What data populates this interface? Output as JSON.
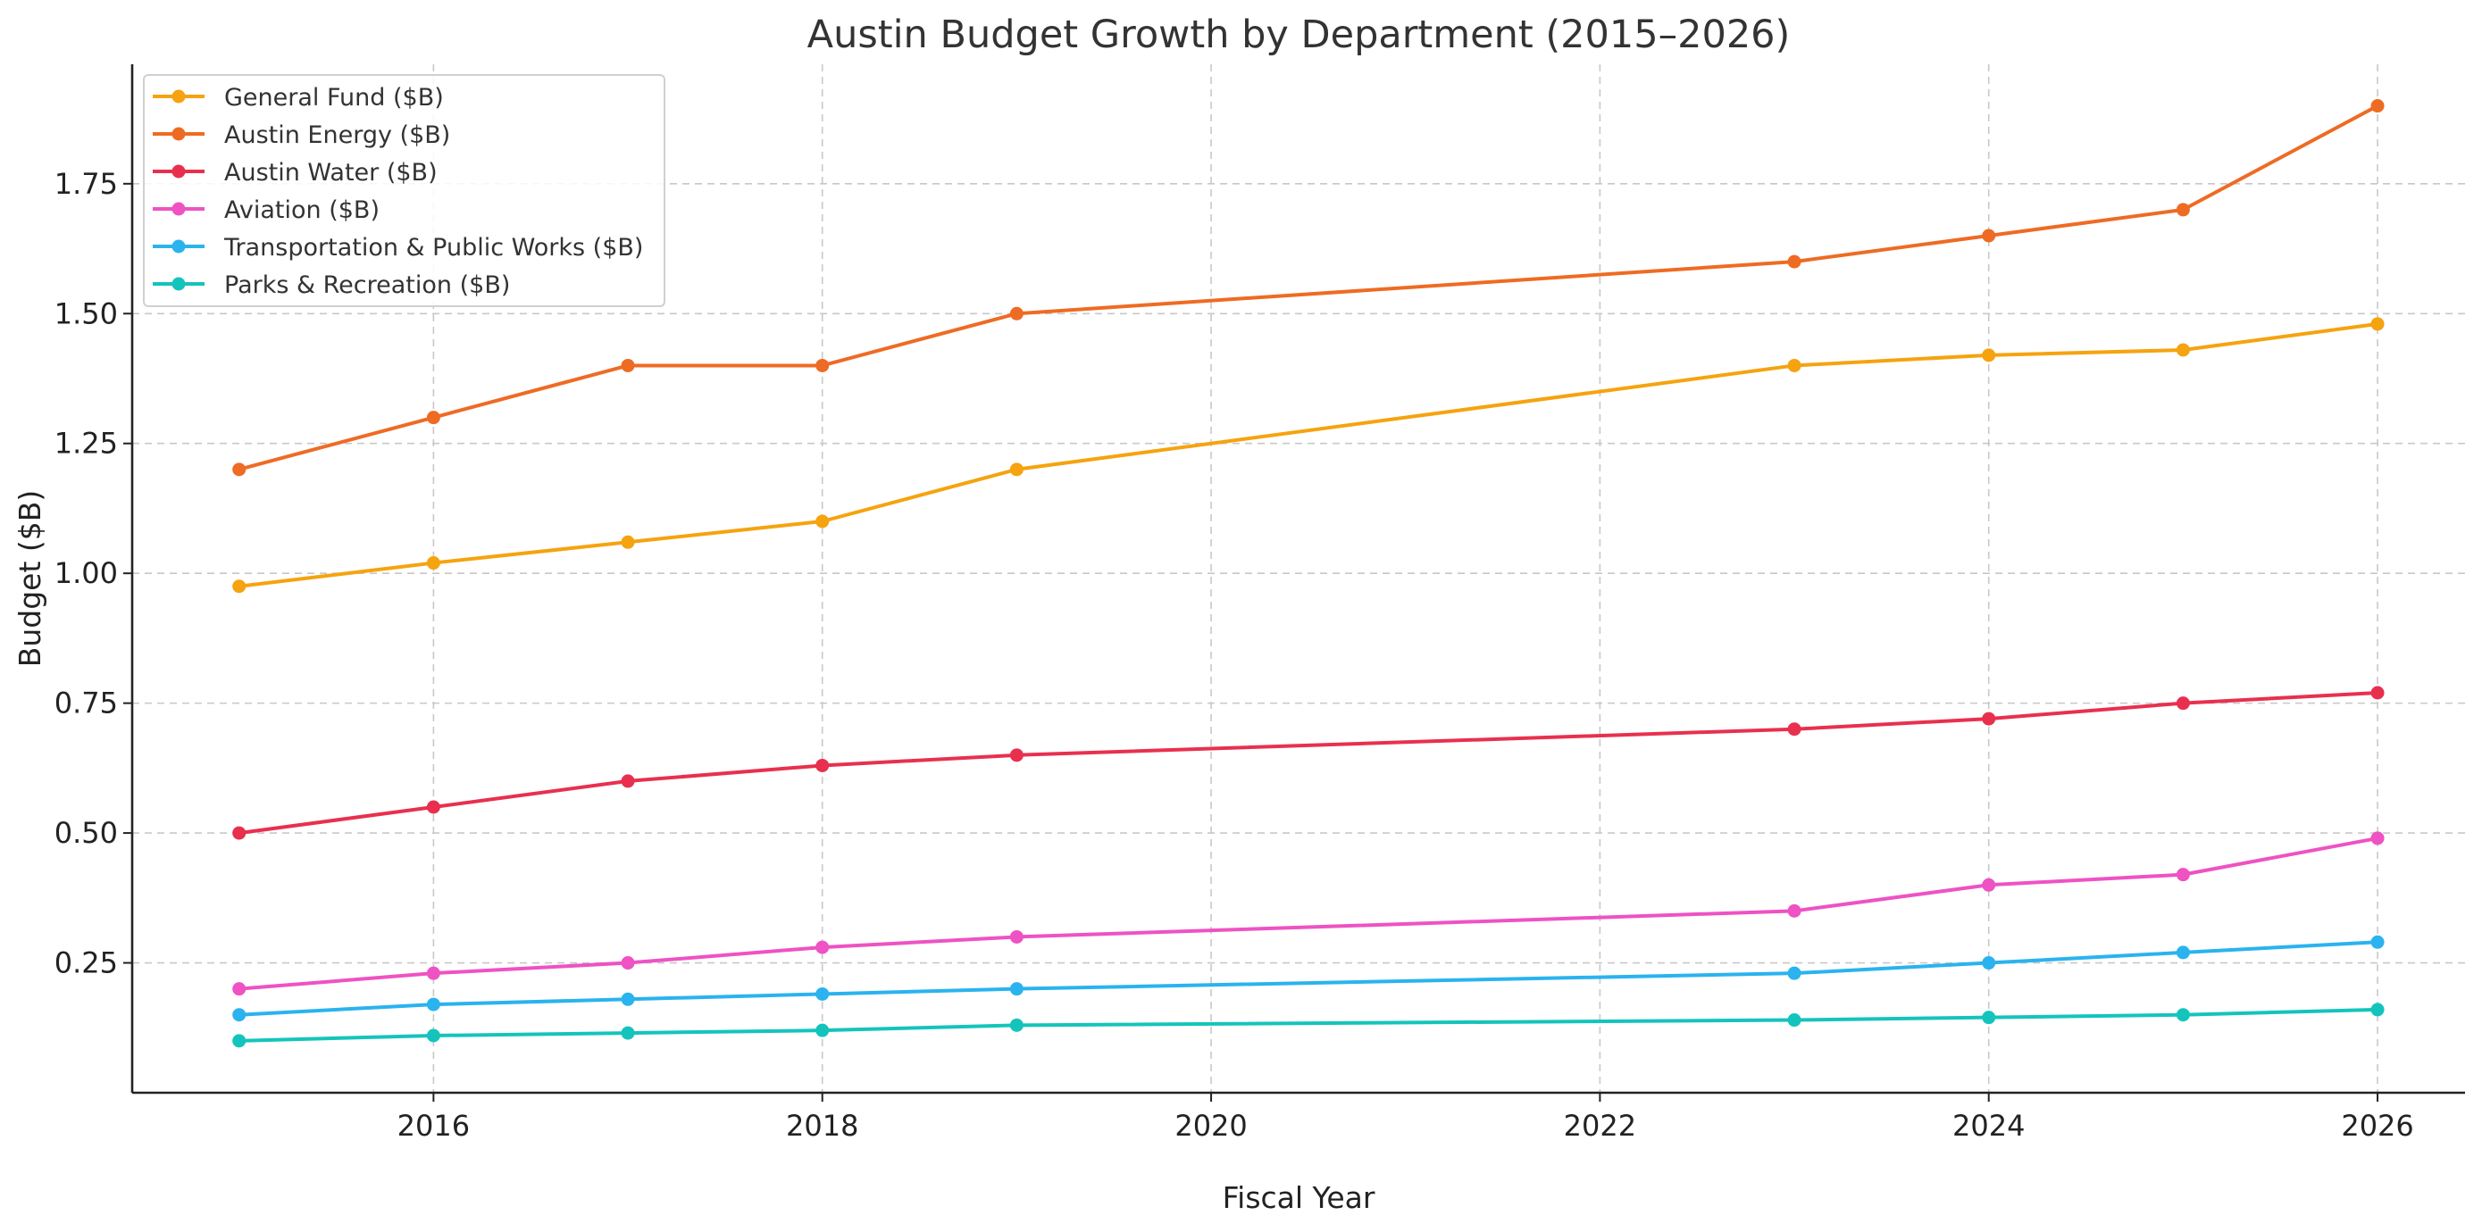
{
  "chart_data": {
    "type": "line",
    "title": "Austin Budget Growth by Department (2015–2026)",
    "xlabel": "Fiscal Year",
    "ylabel": "Budget ($B)",
    "x": [
      2015,
      2016,
      2017,
      2018,
      2019,
      2023,
      2024,
      2025,
      2026
    ],
    "xlim": [
      2014.45,
      2026.45
    ],
    "ylim": [
      0.0,
      1.98
    ],
    "xticks": [
      2016,
      2018,
      2020,
      2022,
      2024,
      2026
    ],
    "xtick_labels": [
      "2016",
      "2018",
      "2020",
      "2022",
      "2024",
      "2026"
    ],
    "yticks": [
      0.25,
      0.5,
      0.75,
      1.0,
      1.25,
      1.5,
      1.75
    ],
    "ytick_labels": [
      "0.25",
      "0.50",
      "0.75",
      "1.00",
      "1.25",
      "1.50",
      "1.75"
    ],
    "grid": true,
    "legend_position": "top-left",
    "series": [
      {
        "name": "General Fund ($B)",
        "color": "#F5A30F",
        "values": [
          0.975,
          1.02,
          1.06,
          1.1,
          1.2,
          1.4,
          1.42,
          1.43,
          1.48
        ]
      },
      {
        "name": "Austin Energy ($B)",
        "color": "#EE6B24",
        "values": [
          1.2,
          1.3,
          1.4,
          1.4,
          1.5,
          1.6,
          1.65,
          1.7,
          1.9
        ]
      },
      {
        "name": "Austin Water ($B)",
        "color": "#E8304E",
        "values": [
          0.5,
          0.55,
          0.6,
          0.63,
          0.65,
          0.7,
          0.72,
          0.75,
          0.77
        ]
      },
      {
        "name": "Aviation ($B)",
        "color": "#EE52C3",
        "values": [
          0.2,
          0.23,
          0.25,
          0.28,
          0.3,
          0.35,
          0.4,
          0.42,
          0.49
        ]
      },
      {
        "name": "Transportation & Public Works ($B)",
        "color": "#2AB3EE",
        "values": [
          0.15,
          0.17,
          0.18,
          0.19,
          0.2,
          0.23,
          0.25,
          0.27,
          0.29
        ]
      },
      {
        "name": "Parks & Recreation ($B)",
        "color": "#14C4BC",
        "values": [
          0.1,
          0.11,
          0.115,
          0.12,
          0.13,
          0.14,
          0.145,
          0.15,
          0.16
        ]
      }
    ]
  }
}
